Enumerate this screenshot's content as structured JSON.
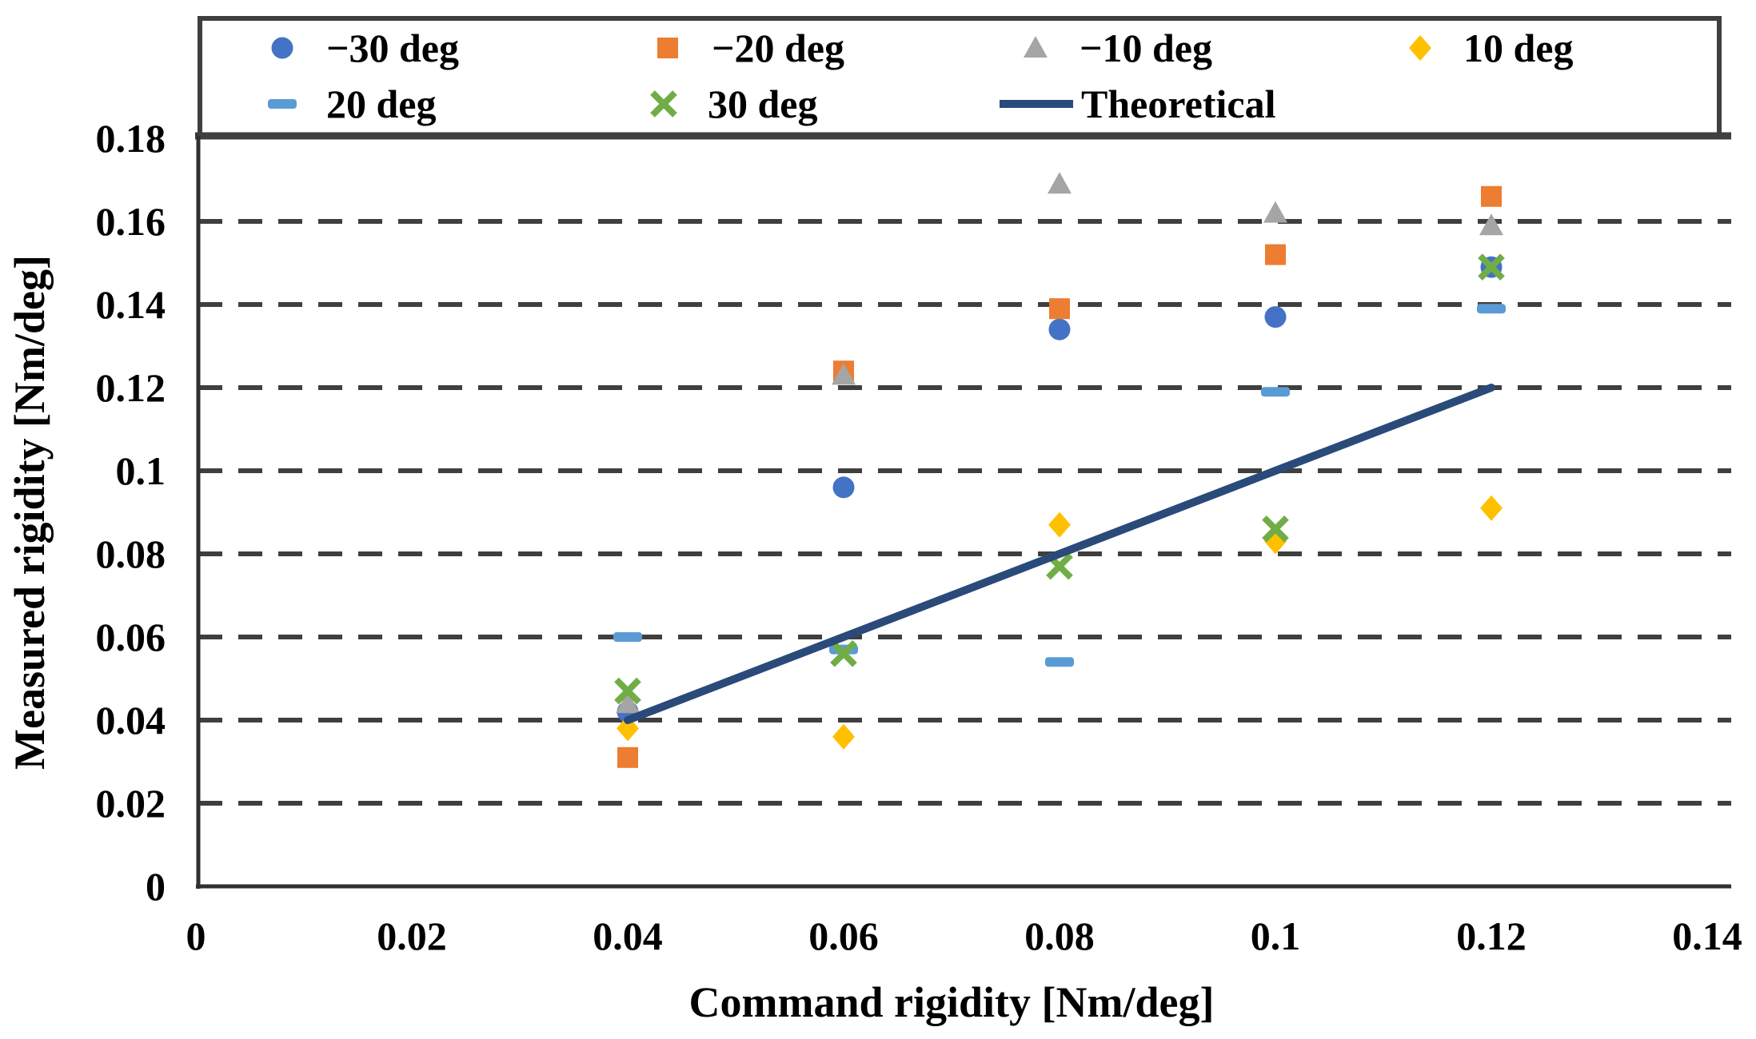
{
  "figure": {
    "description": "Scatter plot of measured rigidity versus command rigidity for six joint angles with a theoretical reference line"
  },
  "chart_data": {
    "type": "scatter",
    "title": "",
    "xlabel": "Command rigidity [Nm/deg]",
    "ylabel": "Measured rigidity [Nm/deg]",
    "xlim": [
      0,
      0.14
    ],
    "ylim": [
      0,
      0.18
    ],
    "x_ticks": [
      0,
      0.02,
      0.04,
      0.06,
      0.08,
      0.1,
      0.12,
      0.14
    ],
    "x_tick_labels": [
      "0",
      "0.02",
      "0.04",
      "0.06",
      "0.08",
      "0.1",
      "0.12",
      "0.14"
    ],
    "y_ticks": [
      0,
      0.02,
      0.04,
      0.06,
      0.08,
      0.1,
      0.12,
      0.14,
      0.16,
      0.18
    ],
    "y_tick_labels": [
      "0",
      "0.02",
      "0.04",
      "0.06",
      "0.08",
      "0.1",
      "0.12",
      "0.14",
      "0.16",
      "0.18"
    ],
    "grid": "horizontal-dashed",
    "legend_position": "top-box-two-rows",
    "x": [
      0.04,
      0.06,
      0.08,
      0.1,
      0.12
    ],
    "series": [
      {
        "name": "−30 deg",
        "marker": "circle",
        "color": "#4472C4",
        "values": [
          0.042,
          0.096,
          0.134,
          0.137,
          0.149
        ]
      },
      {
        "name": "−20 deg",
        "marker": "square",
        "color": "#ED7D31",
        "values": [
          0.031,
          0.124,
          0.139,
          0.152,
          0.166
        ]
      },
      {
        "name": "−10 deg",
        "marker": "triangle",
        "color": "#A5A5A5",
        "values": [
          0.044,
          0.123,
          0.169,
          0.162,
          0.159
        ]
      },
      {
        "name": "10 deg",
        "marker": "diamond",
        "color": "#FFC000",
        "values": [
          0.038,
          0.036,
          0.087,
          0.083,
          0.091
        ]
      },
      {
        "name": "20 deg",
        "marker": "dash",
        "color": "#5B9BD5",
        "values": [
          0.06,
          0.057,
          0.054,
          0.119,
          0.139
        ]
      },
      {
        "name": "30 deg",
        "marker": "x",
        "color": "#70AD47",
        "values": [
          0.047,
          0.056,
          0.077,
          0.086,
          0.149
        ]
      }
    ],
    "theoretical": {
      "name": "Theoretical",
      "color": "#2A4A7A",
      "points": [
        [
          0.04,
          0.04
        ],
        [
          0.12,
          0.12
        ]
      ]
    },
    "colors": {
      "grid": "#3F3F3F",
      "axis": "#303030",
      "plot_border": "#3F3F3F",
      "text": "#000000",
      "background": "#FFFFFF"
    }
  }
}
